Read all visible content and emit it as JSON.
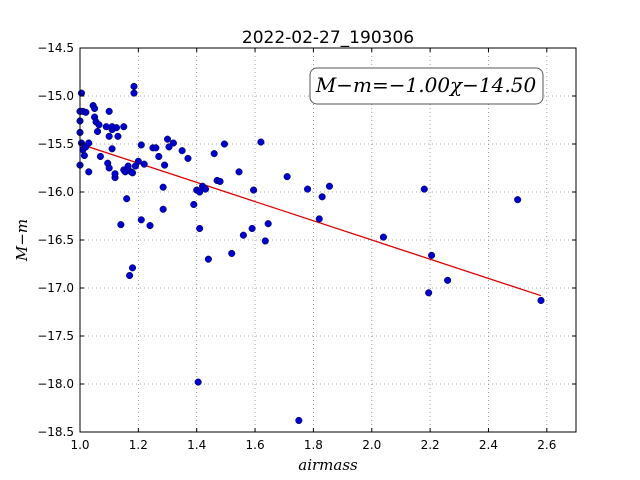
{
  "chart_data": {
    "type": "scatter",
    "title": "2022-02-27_190306",
    "xlabel": "airmass",
    "ylabel": "M−m",
    "xlim": [
      1.0,
      2.7
    ],
    "ylim": [
      -14.5,
      -18.5
    ],
    "y_inverted": true,
    "grid": true,
    "x_ticks": [
      1.0,
      1.2,
      1.4,
      1.6,
      1.8,
      2.0,
      2.2,
      2.4,
      2.6
    ],
    "x_tick_labels": [
      "1.0",
      "1.2",
      "1.4",
      "1.6",
      "1.8",
      "2.0",
      "2.2",
      "2.4",
      "2.6"
    ],
    "y_ticks": [
      -14.5,
      -15.0,
      -15.5,
      -16.0,
      -16.5,
      -17.0,
      -17.5,
      -18.0,
      -18.5
    ],
    "y_tick_labels": [
      "−14.5",
      "−15.0",
      "−15.5",
      "−16.0",
      "−16.5",
      "−17.0",
      "−17.5",
      "−18.0",
      "−18.5"
    ],
    "annotation": "M−m=−1.00χ−14.50",
    "point_color": "#0000cc",
    "fit_color": "#dd0000",
    "fit": {
      "slope": -1.0,
      "intercept": -14.5,
      "x_range": [
        1.0,
        2.58
      ]
    },
    "points": [
      [
        1.005,
        -14.97
      ],
      [
        1.0,
        -15.16
      ],
      [
        1.0,
        -15.26
      ],
      [
        1.0,
        -15.38
      ],
      [
        1.01,
        -15.16
      ],
      [
        1.005,
        -15.49
      ],
      [
        1.01,
        -15.56
      ],
      [
        1.015,
        -15.62
      ],
      [
        1.02,
        -15.17
      ],
      [
        1.02,
        -15.53
      ],
      [
        1.0,
        -15.72
      ],
      [
        1.03,
        -15.79
      ],
      [
        1.03,
        -15.49
      ],
      [
        1.045,
        -15.1
      ],
      [
        1.05,
        -15.13
      ],
      [
        1.05,
        -15.22
      ],
      [
        1.055,
        -15.27
      ],
      [
        1.06,
        -15.37
      ],
      [
        1.065,
        -15.3
      ],
      [
        1.07,
        -15.63
      ],
      [
        1.09,
        -15.32
      ],
      [
        1.095,
        -15.7
      ],
      [
        1.1,
        -15.42
      ],
      [
        1.1,
        -15.75
      ],
      [
        1.1,
        -15.16
      ],
      [
        1.11,
        -15.35
      ],
      [
        1.11,
        -15.55
      ],
      [
        1.11,
        -15.32
      ],
      [
        1.12,
        -15.85
      ],
      [
        1.12,
        -15.81
      ],
      [
        1.125,
        -15.33
      ],
      [
        1.13,
        -15.42
      ],
      [
        1.14,
        -16.34
      ],
      [
        1.15,
        -15.77
      ],
      [
        1.15,
        -15.32
      ],
      [
        1.155,
        -15.79
      ],
      [
        1.16,
        -16.07
      ],
      [
        1.165,
        -15.73
      ],
      [
        1.17,
        -16.87
      ],
      [
        1.175,
        -15.79
      ],
      [
        1.18,
        -16.79
      ],
      [
        1.18,
        -15.8
      ],
      [
        1.185,
        -14.9
      ],
      [
        1.185,
        -14.97
      ],
      [
        1.19,
        -15.73
      ],
      [
        1.2,
        -15.68
      ],
      [
        1.21,
        -15.51
      ],
      [
        1.21,
        -16.29
      ],
      [
        1.22,
        -15.71
      ],
      [
        1.24,
        -16.35
      ],
      [
        1.25,
        -15.54
      ],
      [
        1.26,
        -15.54
      ],
      [
        1.27,
        -15.63
      ],
      [
        1.285,
        -15.95
      ],
      [
        1.285,
        -16.18
      ],
      [
        1.29,
        -15.72
      ],
      [
        1.3,
        -15.45
      ],
      [
        1.305,
        -15.53
      ],
      [
        1.32,
        -15.49
      ],
      [
        1.35,
        -15.57
      ],
      [
        1.37,
        -15.65
      ],
      [
        1.39,
        -16.13
      ],
      [
        1.4,
        -15.98
      ],
      [
        1.41,
        -16.38
      ],
      [
        1.41,
        -16.0
      ],
      [
        1.42,
        -15.94
      ],
      [
        1.43,
        -15.97
      ],
      [
        1.44,
        -16.7
      ],
      [
        1.46,
        -15.6
      ],
      [
        1.47,
        -15.88
      ],
      [
        1.48,
        -15.89
      ],
      [
        1.495,
        -15.5
      ],
      [
        1.52,
        -16.64
      ],
      [
        1.545,
        -15.79
      ],
      [
        1.56,
        -16.45
      ],
      [
        1.59,
        -16.38
      ],
      [
        1.595,
        -15.98
      ],
      [
        1.62,
        -15.48
      ],
      [
        1.635,
        -16.51
      ],
      [
        1.645,
        -16.33
      ],
      [
        1.71,
        -15.84
      ],
      [
        1.78,
        -15.97
      ],
      [
        1.82,
        -16.28
      ],
      [
        1.83,
        -16.05
      ],
      [
        1.855,
        -15.94
      ],
      [
        2.04,
        -16.47
      ],
      [
        2.18,
        -15.97
      ],
      [
        2.195,
        -17.05
      ],
      [
        2.205,
        -16.66
      ],
      [
        2.26,
        -16.92
      ],
      [
        2.5,
        -16.08
      ],
      [
        2.58,
        -17.13
      ],
      [
        1.405,
        -17.98
      ],
      [
        1.75,
        -18.38
      ]
    ]
  }
}
